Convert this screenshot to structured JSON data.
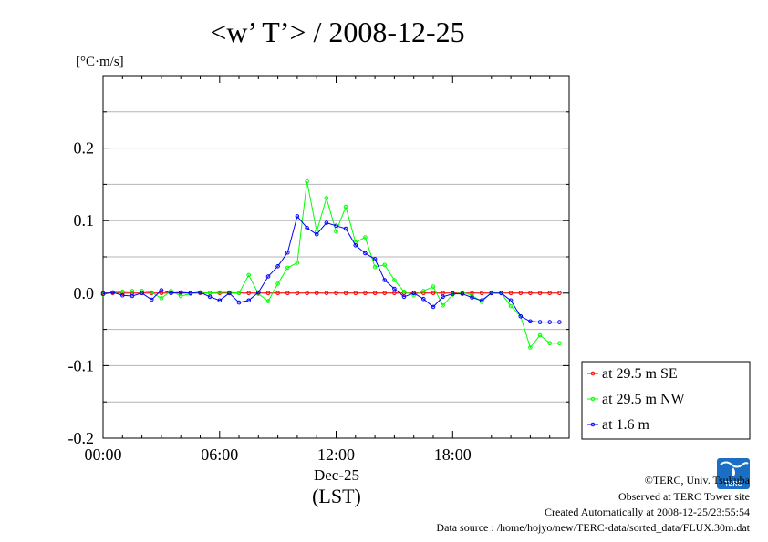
{
  "page": {
    "title": "<w’ T’> / 2008-12-25",
    "footer": {
      "copyright": "©TERC, Univ. Tsukuba",
      "observed": "Observed at TERC Tower site",
      "created": "Created Automatically at 2008-12-25/23:55:54",
      "source": "Data source : /home/hojyo/new/TERC-data/sorted_data/FLUX.30m.dat"
    },
    "logo_text": "TERC"
  },
  "chart_data": {
    "type": "line",
    "title": "<w’ T’> / 2008-12-25",
    "ylabel": "[°C·m/s]",
    "xlabel": "(LST)",
    "x_date_label": "Dec-25",
    "xlim": [
      0,
      24
    ],
    "ylim": [
      -0.2,
      0.3
    ],
    "x_ticks": [
      0,
      6,
      12,
      18
    ],
    "x_tick_labels": [
      "00:00",
      "06:00",
      "12:00",
      "18:00"
    ],
    "y_ticks": [
      -0.2,
      -0.1,
      0.0,
      0.1,
      0.2
    ],
    "y_tick_labels": [
      "-0.2",
      "-0.1",
      "0.0",
      "0.1",
      "0.2"
    ],
    "y_minor_step": 0.05,
    "x_minor_step": 1,
    "grid": true,
    "legend_position": "right",
    "x": [
      0.0,
      0.5,
      1.0,
      1.5,
      2.0,
      2.5,
      3.0,
      3.5,
      4.0,
      4.5,
      5.0,
      5.5,
      6.0,
      6.5,
      7.0,
      7.5,
      8.0,
      8.5,
      9.0,
      9.5,
      10.0,
      10.5,
      11.0,
      11.5,
      12.0,
      12.5,
      13.0,
      13.5,
      14.0,
      14.5,
      15.0,
      15.5,
      16.0,
      16.5,
      17.0,
      17.5,
      18.0,
      18.5,
      19.0,
      19.5,
      20.0,
      20.5,
      21.0,
      21.5,
      22.0,
      22.5,
      23.0,
      23.5
    ],
    "series": [
      {
        "name": "at 29.5 m SE",
        "color": "#ff0000",
        "values": [
          0.0,
          0.0,
          0.0,
          0.0,
          0.0,
          0.0,
          0.0,
          0.0,
          0.0,
          0.0,
          0.0,
          0.0,
          0.0,
          0.0,
          0.0,
          0.0,
          0.0,
          0.0,
          0.0,
          0.0,
          0.0,
          0.0,
          0.0,
          0.0,
          0.0,
          0.0,
          0.0,
          0.0,
          0.0,
          0.0,
          0.0,
          0.0,
          0.0,
          0.0,
          0.0,
          0.0,
          0.0,
          0.0,
          0.0,
          0.0,
          0.0,
          0.0,
          0.0,
          0.0,
          0.0,
          0.0,
          0.0,
          0.0
        ]
      },
      {
        "name": "at 29.5 m NW",
        "color": "#00ff00",
        "values": [
          -0.002,
          0.001,
          0.002,
          0.003,
          0.003,
          0.001,
          -0.007,
          0.003,
          -0.004,
          -0.001,
          0.001,
          0.0,
          0.001,
          0.001,
          0.0,
          0.025,
          -0.001,
          -0.011,
          0.013,
          0.035,
          0.042,
          0.154,
          0.085,
          0.131,
          0.085,
          0.119,
          0.07,
          0.077,
          0.036,
          0.039,
          0.018,
          0.002,
          -0.003,
          0.003,
          0.009,
          -0.017,
          -0.002,
          0.001,
          -0.003,
          -0.012,
          0.001,
          0.0,
          -0.018,
          -0.032,
          -0.075,
          -0.058,
          -0.069,
          -0.069
        ]
      },
      {
        "name": "at 1.6 m",
        "color": "#0000ff",
        "values": [
          -0.001,
          0.001,
          -0.003,
          -0.004,
          0.0,
          -0.009,
          0.004,
          0.0,
          0.001,
          0.0,
          0.001,
          -0.005,
          -0.01,
          0.0,
          -0.013,
          -0.01,
          0.001,
          0.023,
          0.037,
          0.056,
          0.106,
          0.09,
          0.081,
          0.097,
          0.093,
          0.089,
          0.066,
          0.055,
          0.047,
          0.018,
          0.006,
          -0.005,
          0.0,
          -0.008,
          -0.019,
          -0.005,
          -0.001,
          -0.001,
          -0.006,
          -0.01,
          0.0,
          0.0,
          -0.01,
          -0.032,
          -0.039,
          -0.04,
          -0.04,
          -0.04
        ]
      }
    ]
  }
}
